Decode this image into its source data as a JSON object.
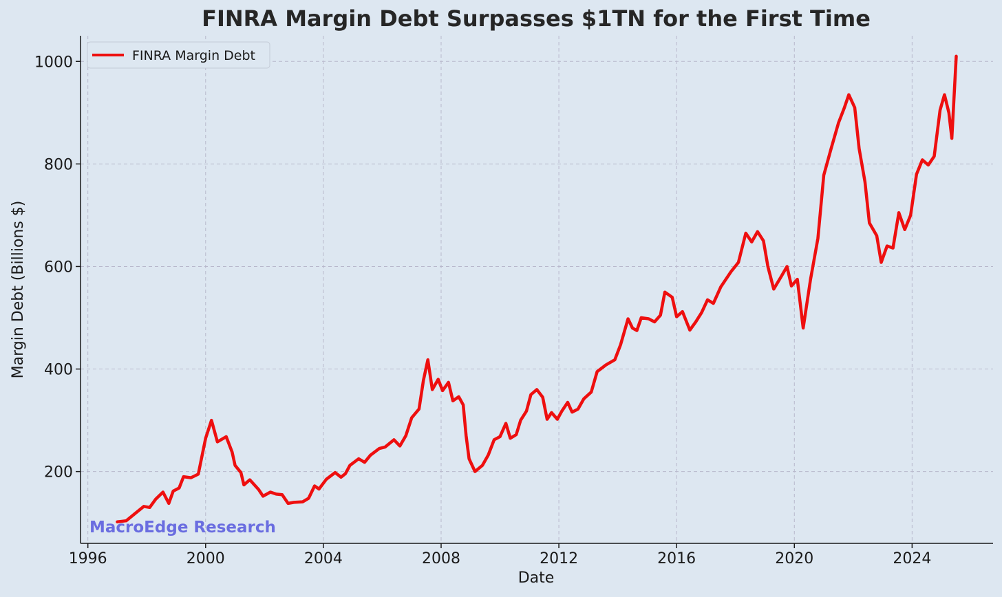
{
  "colors": {
    "background": "#dde7f1",
    "series": "#ee0f0f",
    "grid": "#b8b8cc",
    "axis": "#1a1a1a",
    "text": "#1a1a1a",
    "title": "#262626",
    "watermark": "#6a6de0"
  },
  "chart_data": {
    "type": "line",
    "title": "FINRA Margin Debt Surpasses $1TN for the First Time",
    "xlabel": "Date",
    "ylabel": "Margin Debt (Billions $)",
    "xlim": [
      1995.75,
      2026.75
    ],
    "ylim": [
      60,
      1050
    ],
    "x_ticks": [
      1996,
      2000,
      2004,
      2008,
      2012,
      2016,
      2020,
      2024
    ],
    "y_ticks": [
      200,
      400,
      600,
      800,
      1000
    ],
    "grid": true,
    "grid_style": "dashed",
    "legend_position": "top-left",
    "watermark": "MacroEdge Research",
    "series": [
      {
        "name": "FINRA Margin Debt",
        "x_unit": "year",
        "points": [
          [
            1997.0,
            102
          ],
          [
            1997.3,
            104
          ],
          [
            1997.6,
            118
          ],
          [
            1997.9,
            132
          ],
          [
            1998.1,
            130
          ],
          [
            1998.3,
            146
          ],
          [
            1998.55,
            160
          ],
          [
            1998.75,
            138
          ],
          [
            1998.9,
            162
          ],
          [
            1999.1,
            168
          ],
          [
            1999.25,
            190
          ],
          [
            1999.5,
            188
          ],
          [
            1999.75,
            195
          ],
          [
            2000.0,
            265
          ],
          [
            2000.2,
            300
          ],
          [
            2000.4,
            258
          ],
          [
            2000.7,
            268
          ],
          [
            2000.9,
            238
          ],
          [
            2001.0,
            212
          ],
          [
            2001.2,
            198
          ],
          [
            2001.3,
            174
          ],
          [
            2001.5,
            184
          ],
          [
            2001.8,
            165
          ],
          [
            2001.95,
            152
          ],
          [
            2002.2,
            160
          ],
          [
            2002.4,
            156
          ],
          [
            2002.6,
            155
          ],
          [
            2002.8,
            138
          ],
          [
            2003.0,
            140
          ],
          [
            2003.3,
            141
          ],
          [
            2003.5,
            148
          ],
          [
            2003.7,
            172
          ],
          [
            2003.85,
            166
          ],
          [
            2004.1,
            185
          ],
          [
            2004.4,
            198
          ],
          [
            2004.6,
            189
          ],
          [
            2004.75,
            196
          ],
          [
            2004.9,
            212
          ],
          [
            2005.2,
            225
          ],
          [
            2005.4,
            218
          ],
          [
            2005.6,
            232
          ],
          [
            2005.9,
            245
          ],
          [
            2006.1,
            248
          ],
          [
            2006.4,
            262
          ],
          [
            2006.6,
            250
          ],
          [
            2006.8,
            270
          ],
          [
            2007.0,
            305
          ],
          [
            2007.25,
            322
          ],
          [
            2007.4,
            378
          ],
          [
            2007.55,
            418
          ],
          [
            2007.7,
            360
          ],
          [
            2007.9,
            380
          ],
          [
            2008.05,
            358
          ],
          [
            2008.25,
            374
          ],
          [
            2008.4,
            338
          ],
          [
            2008.6,
            346
          ],
          [
            2008.75,
            330
          ],
          [
            2008.85,
            270
          ],
          [
            2008.95,
            225
          ],
          [
            2009.15,
            200
          ],
          [
            2009.4,
            212
          ],
          [
            2009.6,
            232
          ],
          [
            2009.8,
            262
          ],
          [
            2010.0,
            268
          ],
          [
            2010.2,
            294
          ],
          [
            2010.35,
            265
          ],
          [
            2010.55,
            272
          ],
          [
            2010.7,
            300
          ],
          [
            2010.9,
            318
          ],
          [
            2011.05,
            350
          ],
          [
            2011.25,
            360
          ],
          [
            2011.45,
            345
          ],
          [
            2011.6,
            302
          ],
          [
            2011.75,
            315
          ],
          [
            2011.95,
            302
          ],
          [
            2012.1,
            318
          ],
          [
            2012.3,
            335
          ],
          [
            2012.45,
            316
          ],
          [
            2012.65,
            322
          ],
          [
            2012.85,
            342
          ],
          [
            2013.1,
            355
          ],
          [
            2013.3,
            395
          ],
          [
            2013.6,
            408
          ],
          [
            2013.9,
            418
          ],
          [
            2014.1,
            448
          ],
          [
            2014.35,
            498
          ],
          [
            2014.5,
            480
          ],
          [
            2014.65,
            475
          ],
          [
            2014.8,
            500
          ],
          [
            2015.05,
            498
          ],
          [
            2015.25,
            492
          ],
          [
            2015.45,
            505
          ],
          [
            2015.6,
            550
          ],
          [
            2015.85,
            540
          ],
          [
            2016.0,
            502
          ],
          [
            2016.2,
            512
          ],
          [
            2016.45,
            476
          ],
          [
            2016.65,
            492
          ],
          [
            2016.85,
            510
          ],
          [
            2017.05,
            535
          ],
          [
            2017.25,
            528
          ],
          [
            2017.5,
            560
          ],
          [
            2017.85,
            590
          ],
          [
            2018.1,
            608
          ],
          [
            2018.35,
            665
          ],
          [
            2018.55,
            648
          ],
          [
            2018.75,
            668
          ],
          [
            2018.95,
            650
          ],
          [
            2019.1,
            600
          ],
          [
            2019.3,
            556
          ],
          [
            2019.55,
            580
          ],
          [
            2019.75,
            600
          ],
          [
            2019.9,
            562
          ],
          [
            2020.1,
            575
          ],
          [
            2020.3,
            480
          ],
          [
            2020.55,
            575
          ],
          [
            2020.8,
            655
          ],
          [
            2021.0,
            778
          ],
          [
            2021.25,
            830
          ],
          [
            2021.5,
            880
          ],
          [
            2021.7,
            910
          ],
          [
            2021.85,
            935
          ],
          [
            2022.05,
            910
          ],
          [
            2022.2,
            830
          ],
          [
            2022.4,
            765
          ],
          [
            2022.55,
            685
          ],
          [
            2022.8,
            660
          ],
          [
            2022.95,
            608
          ],
          [
            2023.15,
            640
          ],
          [
            2023.35,
            636
          ],
          [
            2023.55,
            705
          ],
          [
            2023.75,
            672
          ],
          [
            2023.95,
            700
          ],
          [
            2024.15,
            780
          ],
          [
            2024.35,
            808
          ],
          [
            2024.55,
            798
          ],
          [
            2024.75,
            815
          ],
          [
            2024.95,
            905
          ],
          [
            2025.1,
            935
          ],
          [
            2025.25,
            900
          ],
          [
            2025.35,
            850
          ],
          [
            2025.5,
            1010
          ]
        ]
      }
    ]
  }
}
